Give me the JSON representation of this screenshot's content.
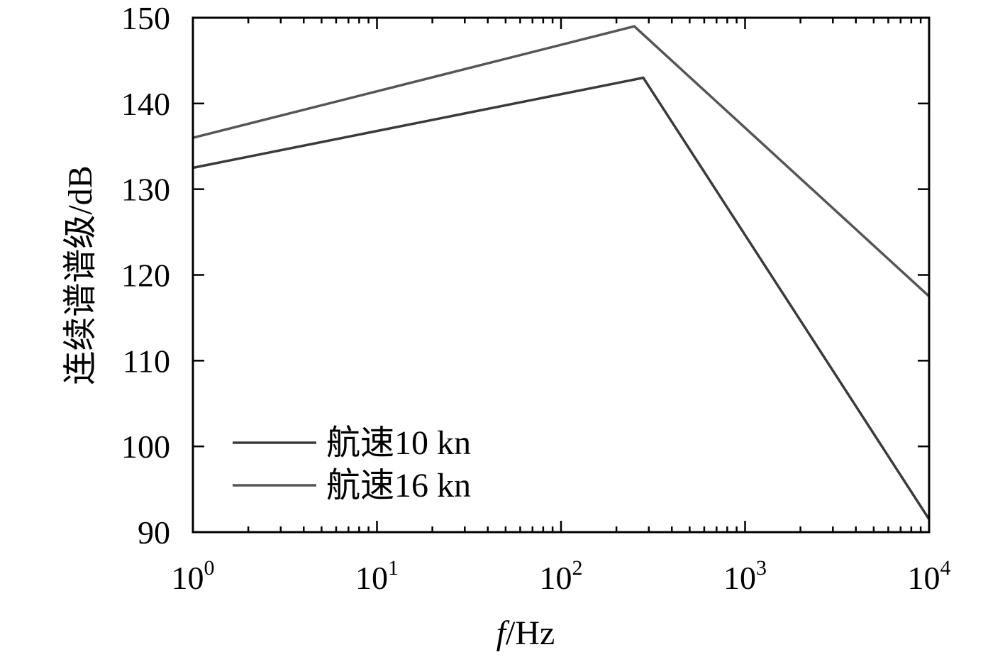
{
  "chart_data": {
    "type": "line",
    "title": "",
    "xlabel": {
      "italic": "f",
      "rest": "/Hz"
    },
    "ylabel": "连续谱谱级/dB",
    "x_scale": "log",
    "xlim": [
      1,
      10000
    ],
    "ylim": [
      90,
      150
    ],
    "x_ticks": [
      {
        "value": 1,
        "base": "10",
        "exp": "0"
      },
      {
        "value": 10,
        "base": "10",
        "exp": "1"
      },
      {
        "value": 100,
        "base": "10",
        "exp": "2"
      },
      {
        "value": 1000,
        "base": "10",
        "exp": "3"
      },
      {
        "value": 10000,
        "base": "10",
        "exp": "4"
      }
    ],
    "y_ticks": [
      90,
      100,
      110,
      120,
      130,
      140,
      150
    ],
    "grid": false,
    "legend_position": "bottom-left",
    "series": [
      {
        "name": "航速10 kn",
        "color": "#3a3a3a",
        "x": [
          1,
          280,
          10000
        ],
        "y": [
          132.5,
          143,
          91.5
        ]
      },
      {
        "name": "航速16 kn",
        "color": "#555555",
        "x": [
          1,
          250,
          10000
        ],
        "y": [
          136,
          149,
          117.5
        ]
      }
    ]
  }
}
